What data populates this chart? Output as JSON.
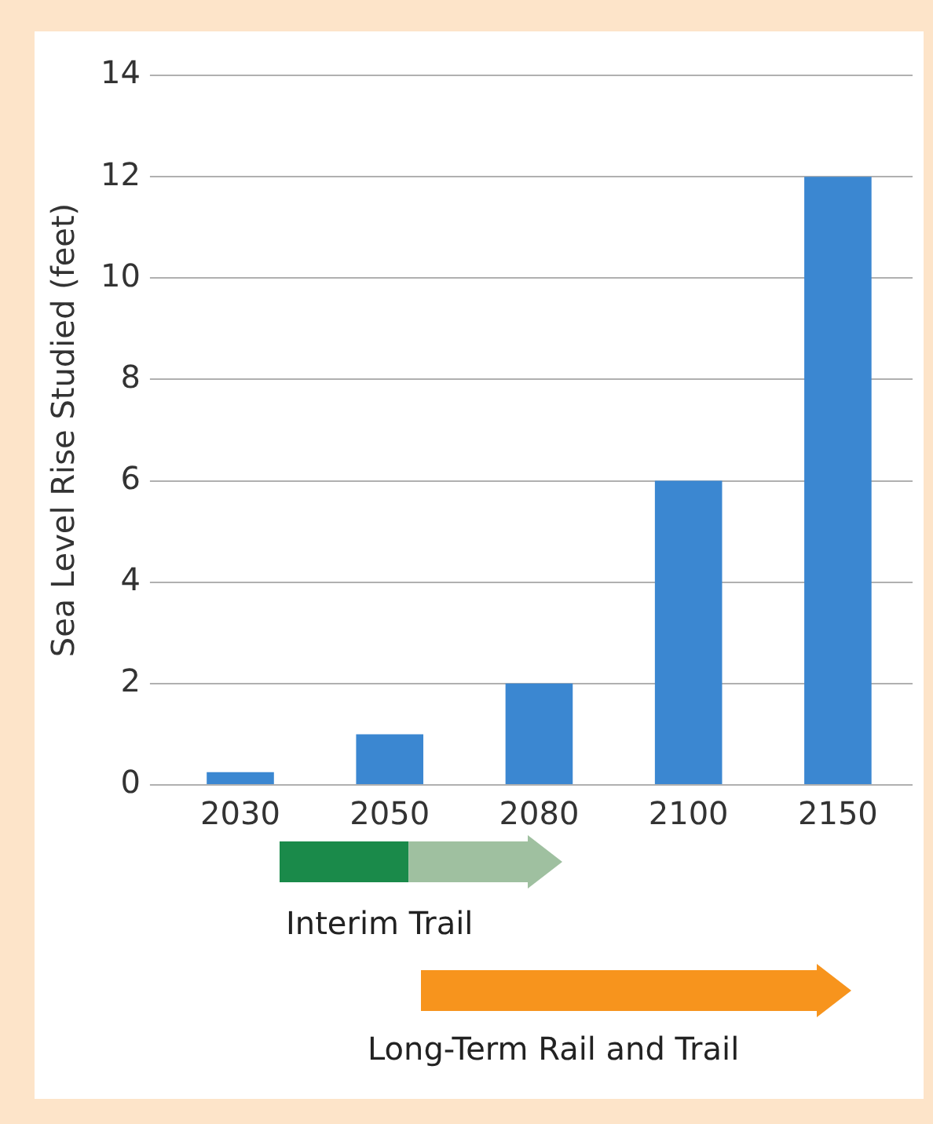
{
  "chart_data": {
    "type": "bar",
    "ylabel": "Sea Level Rise Studied (feet)",
    "categories": [
      "2030",
      "2050",
      "2080",
      "2100",
      "2150"
    ],
    "values": [
      0.25,
      1,
      2,
      6,
      12
    ],
    "color": "#3b87d1",
    "ylim": [
      0,
      14
    ],
    "yticks": [
      0,
      2,
      4,
      6,
      8,
      10,
      12,
      14
    ],
    "grid": "y",
    "annotations": [
      "Interim Trail",
      "Long-Term Rail and Trail"
    ]
  }
}
